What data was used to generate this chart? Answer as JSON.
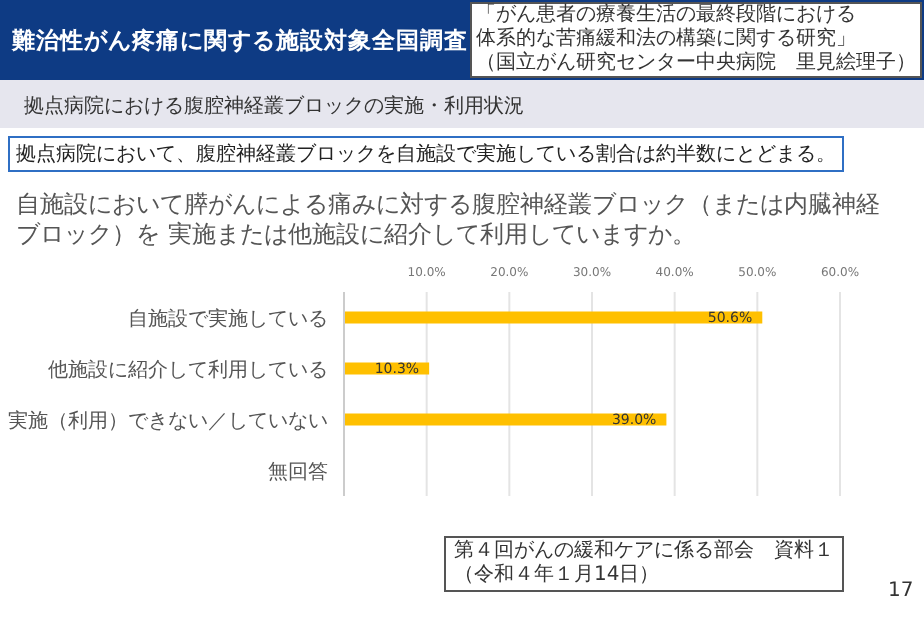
{
  "chart_data": {
    "type": "bar",
    "orientation": "horizontal",
    "title": "自施設において膵がんによる痛みに対する腹腔神経叢ブロック（または内臓神経ブロック）を 実施または他施設に紹介して利用していますか。",
    "subtitle": "拠点病院における腹腔神経叢ブロックの実施・利用状況",
    "annotations": [
      "難治性がん疼痛に関する施設対象全国調査",
      "「がん患者の療養生活の最終段階における",
      "体系的な苦痛緩和法の構築に関する研究」",
      "（国立がん研究センター中央病院　里見絵理子）",
      "拠点病院において、腹腔神経叢ブロックを自施設で実施している割合は約半数にとどまる。",
      "第４回がんの緩和ケアに係る部会　資料１",
      "（令和４年１月14日）",
      "17"
    ],
    "categories": [
      "自施設で実施している",
      "他施設に紹介して利用している",
      "実施（利用）できない／していない",
      "無回答"
    ],
    "values": [
      50.6,
      10.3,
      39.0,
      0
    ],
    "value_labels": [
      "50.6%",
      "10.3%",
      "39.0%",
      null
    ],
    "color": "#ffc000",
    "xlim": [
      0,
      60
    ],
    "xticks": [
      {
        "value": 0,
        "label": null
      },
      {
        "value": 10,
        "label": "10.0%"
      },
      {
        "value": 20,
        "label": "20.0%"
      },
      {
        "value": 30,
        "label": "30.0%"
      },
      {
        "value": 40,
        "label": "40.0%"
      },
      {
        "value": 50,
        "label": "50.0%"
      },
      {
        "value": 60,
        "label": "60.0%"
      }
    ],
    "grid": "x"
  }
}
